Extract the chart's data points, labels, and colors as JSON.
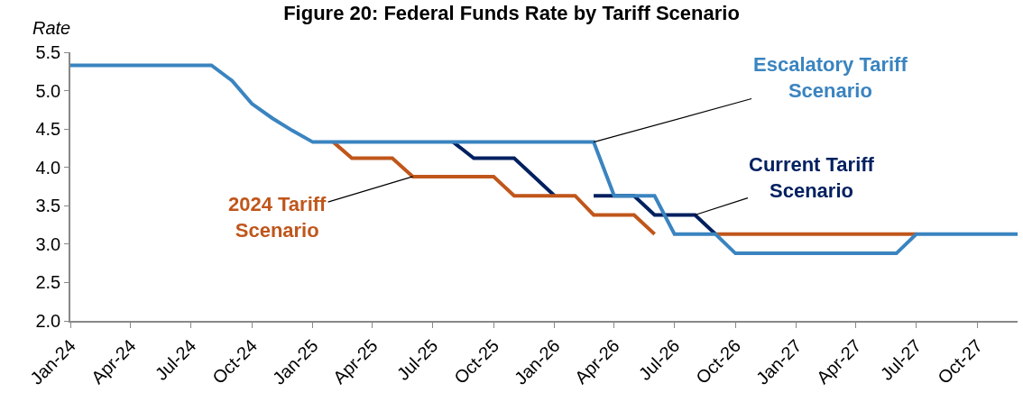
{
  "chart_data": {
    "type": "line",
    "title": "Figure 20: Federal Funds Rate by Tariff Scenario",
    "ylabel": "Rate",
    "x": [
      "2024-01",
      "2024-02",
      "2024-03",
      "2024-04",
      "2024-05",
      "2024-06",
      "2024-07",
      "2024-08",
      "2024-09",
      "2024-10",
      "2024-11",
      "2024-12",
      "2025-01",
      "2025-02",
      "2025-03",
      "2025-04",
      "2025-05",
      "2025-06",
      "2025-07",
      "2025-08",
      "2025-09",
      "2025-10",
      "2025-11",
      "2025-12",
      "2026-01",
      "2026-02",
      "2026-03",
      "2026-04",
      "2026-05",
      "2026-06",
      "2026-07",
      "2026-08",
      "2026-09",
      "2026-10",
      "2026-11",
      "2026-12",
      "2027-01",
      "2027-02",
      "2027-03",
      "2027-04",
      "2027-05",
      "2027-06",
      "2027-07",
      "2027-08",
      "2027-09",
      "2027-10",
      "2027-11",
      "2027-12"
    ],
    "series": [
      {
        "color": "#002060",
        "values": [
          null,
          null,
          null,
          null,
          null,
          null,
          null,
          null,
          null,
          null,
          null,
          null,
          null,
          null,
          null,
          null,
          null,
          null,
          null,
          4.33,
          4.12,
          4.12,
          4.12,
          3.88,
          3.63,
          null,
          3.63,
          3.63,
          3.63,
          3.38,
          3.38,
          3.38,
          3.13,
          null,
          null,
          null,
          null,
          null,
          null,
          null,
          null,
          null,
          null,
          null,
          null,
          null,
          null,
          null
        ]
      },
      {
        "color": "#c0561b",
        "values": [
          null,
          null,
          null,
          null,
          null,
          null,
          null,
          null,
          null,
          null,
          null,
          null,
          null,
          4.33,
          4.12,
          4.12,
          4.12,
          3.88,
          3.88,
          3.88,
          3.88,
          3.88,
          3.63,
          3.63,
          3.63,
          3.63,
          3.38,
          3.38,
          3.38,
          3.13,
          null,
          null,
          3.13,
          3.13,
          3.13,
          3.13,
          3.13,
          3.13,
          3.13,
          3.13,
          3.13,
          3.13,
          3.13,
          null,
          null,
          null,
          null,
          null
        ]
      },
      {
        "color": "#3a84c0",
        "values": [
          5.33,
          5.33,
          5.33,
          5.33,
          5.33,
          5.33,
          5.33,
          5.33,
          5.13,
          4.83,
          4.64,
          4.48,
          4.33,
          4.33,
          4.33,
          4.33,
          4.33,
          4.33,
          4.33,
          4.33,
          4.33,
          4.33,
          4.33,
          4.33,
          4.33,
          4.33,
          4.33,
          3.63,
          3.63,
          3.63,
          3.13,
          3.13,
          3.13,
          2.88,
          2.88,
          2.88,
          2.88,
          2.88,
          2.88,
          2.88,
          2.88,
          2.88,
          3.13,
          3.13,
          3.13,
          3.13,
          3.13,
          3.13
        ]
      }
    ],
    "annotations": [
      {
        "text": "Current Tariff\nScenario",
        "x": "2026-08",
        "y": 3.38
      },
      {
        "text": "2024 Tariff\nScenario",
        "x": "2025-06",
        "y": 3.88
      },
      {
        "text": "Escalatory Tariff\nScenario",
        "x": "2026-03",
        "y": 4.33
      }
    ],
    "xlim": [
      "2024-01",
      "2027-12"
    ],
    "xticks": [
      {
        "value": "2024-01",
        "label": "Jan-24"
      },
      {
        "value": "2024-04",
        "label": "Apr-24"
      },
      {
        "value": "2024-07",
        "label": "Jul-24"
      },
      {
        "value": "2024-10",
        "label": "Oct-24"
      },
      {
        "value": "2025-01",
        "label": "Jan-25"
      },
      {
        "value": "2025-04",
        "label": "Apr-25"
      },
      {
        "value": "2025-07",
        "label": "Jul-25"
      },
      {
        "value": "2025-10",
        "label": "Oct-25"
      },
      {
        "value": "2026-01",
        "label": "Jan-26"
      },
      {
        "value": "2026-04",
        "label": "Apr-26"
      },
      {
        "value": "2026-07",
        "label": "Jul-26"
      },
      {
        "value": "2026-10",
        "label": "Oct-26"
      },
      {
        "value": "2027-01",
        "label": "Jan-27"
      },
      {
        "value": "2027-04",
        "label": "Apr-27"
      },
      {
        "value": "2027-07",
        "label": "Jul-27"
      },
      {
        "value": "2027-10",
        "label": "Oct-27"
      }
    ],
    "ylim": [
      2.0,
      5.5
    ],
    "yticks": [
      {
        "value": 2,
        "label": "2.0"
      },
      {
        "value": 2.5,
        "label": "2.5"
      },
      {
        "value": 3,
        "label": "3.0"
      },
      {
        "value": 3.5,
        "label": "3.5"
      },
      {
        "value": 4,
        "label": "4.0"
      },
      {
        "value": 4.5,
        "label": "4.5"
      },
      {
        "value": 5,
        "label": "5.0"
      },
      {
        "value": 5.5,
        "label": "5.5"
      }
    ],
    "marker": "none",
    "line_style": "solid"
  }
}
